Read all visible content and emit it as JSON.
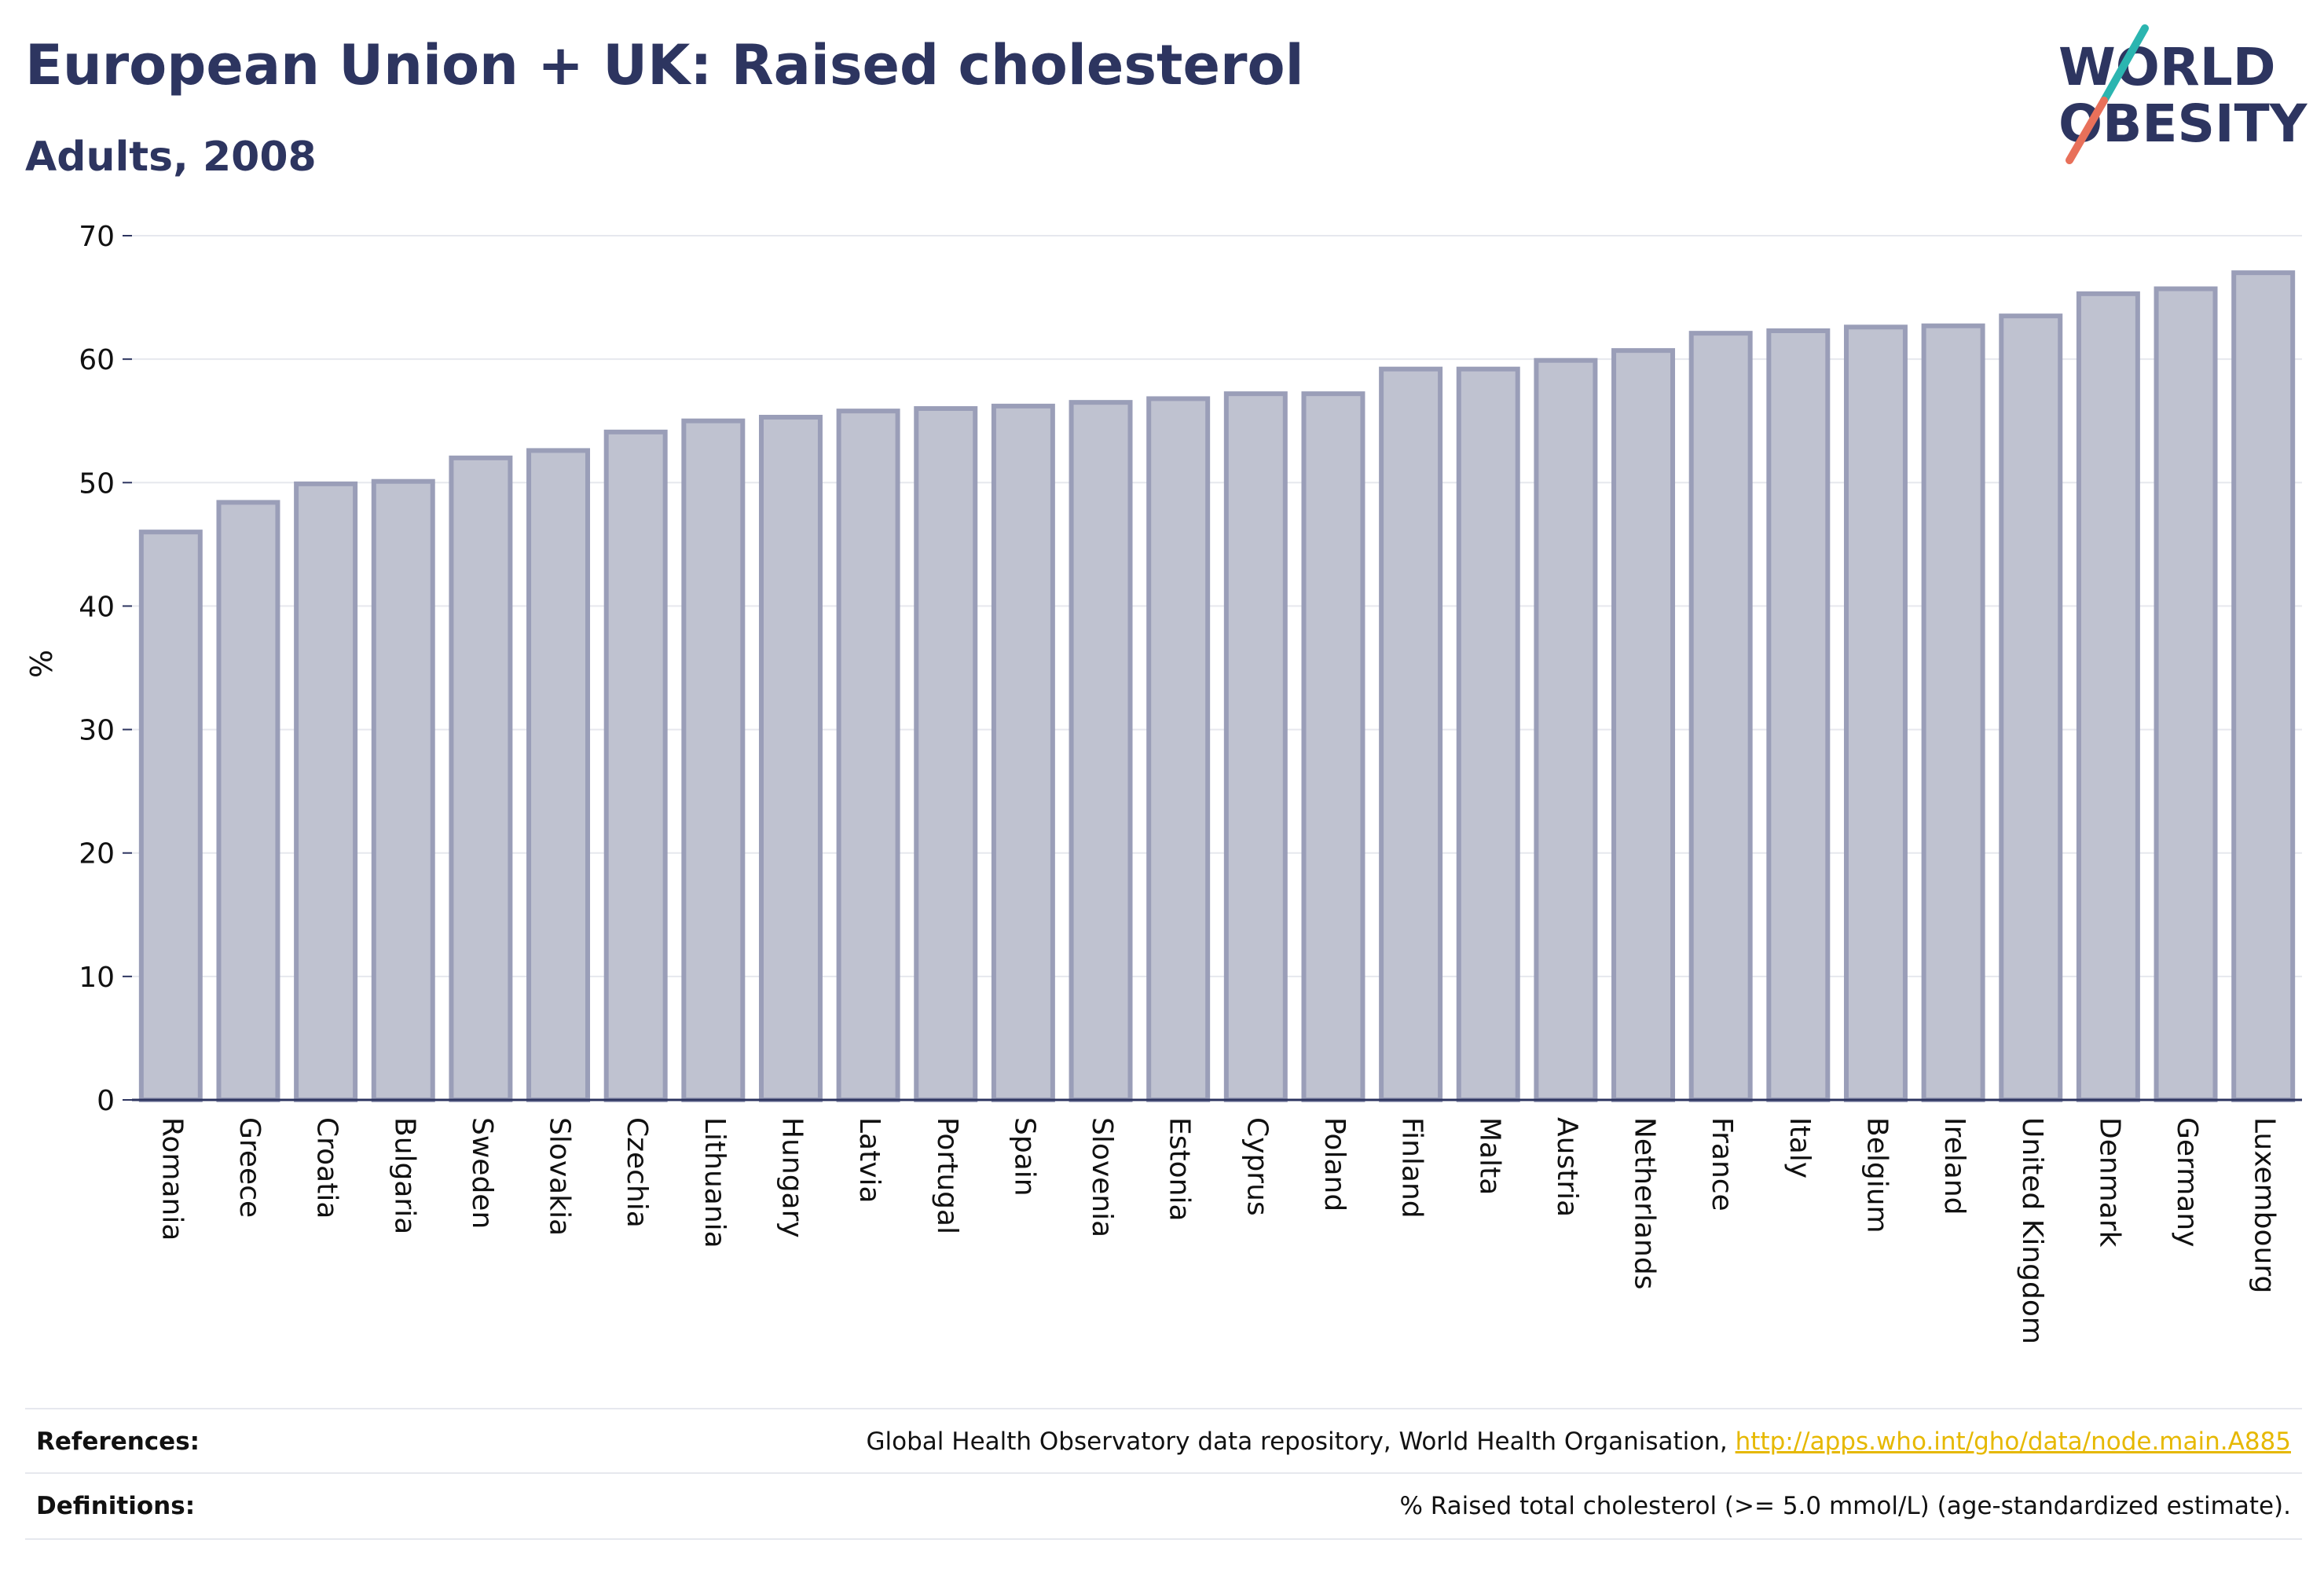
{
  "header": {
    "title": "European Union + UK: Raised cholesterol",
    "subtitle": "Adults, 2008"
  },
  "logo": {
    "line1": "WORLD",
    "line2": "OBESITY",
    "colors": {
      "text": "#2d3560",
      "slash_top": "#2bb5b0",
      "slash_bottom": "#e8705a"
    }
  },
  "chart_data": {
    "type": "bar",
    "ylabel": "%",
    "ylim": [
      0,
      70
    ],
    "yticks": [
      0,
      10,
      20,
      30,
      40,
      50,
      60,
      70
    ],
    "grid": true,
    "categories": [
      "Romania",
      "Greece",
      "Croatia",
      "Bulgaria",
      "Sweden",
      "Slovakia",
      "Czechia",
      "Lithuania",
      "Hungary",
      "Latvia",
      "Portugal",
      "Spain",
      "Slovenia",
      "Estonia",
      "Cyprus",
      "Poland",
      "Finland",
      "Malta",
      "Austria",
      "Netherlands",
      "France",
      "Italy",
      "Belgium",
      "Ireland",
      "United Kingdom",
      "Denmark",
      "Germany",
      "Luxembourg"
    ],
    "values": [
      46.0,
      48.4,
      49.9,
      50.1,
      52.0,
      52.6,
      54.1,
      55.0,
      55.3,
      55.8,
      56.0,
      56.2,
      56.5,
      56.8,
      57.2,
      57.2,
      59.2,
      59.2,
      59.9,
      60.7,
      62.1,
      62.3,
      62.6,
      62.7,
      63.5,
      65.3,
      65.7,
      67.0
    ],
    "colors": {
      "bar_fill": "#bfc2d0",
      "bar_stroke": "#9a9eb8",
      "axis": "#2d3560",
      "grid": "#e6e8ee"
    }
  },
  "footer": {
    "references_label": "References:",
    "references_text": "Global Health Observatory data repository, World Health Organisation, ",
    "references_link": "http://apps.who.int/gho/data/node.main.A885",
    "definitions_label": "Definitions:",
    "definitions_text": "% Raised total cholesterol (>= 5.0 mmol/L) (age-standardized estimate)."
  }
}
